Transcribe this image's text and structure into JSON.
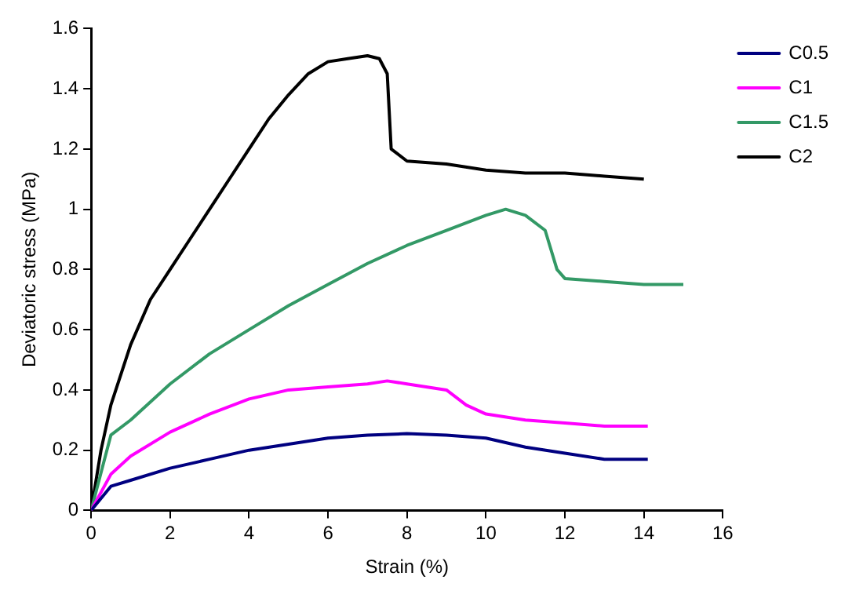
{
  "chart_data": {
    "type": "line",
    "xlabel": "Strain (%)",
    "ylabel": "Deviatoric stress (MPa)",
    "xlim": [
      0,
      16
    ],
    "xticks": [
      0,
      2,
      4,
      6,
      8,
      10,
      12,
      14,
      16
    ],
    "ylim": [
      0,
      1.6
    ],
    "yticks": [
      0,
      0.2,
      0.4,
      0.6,
      0.8,
      1,
      1.2,
      1.4,
      1.6
    ],
    "grid": false,
    "legend": "top right",
    "marker": "none",
    "line_style": "solid",
    "series": [
      {
        "name": "C0.5",
        "color": "#000080",
        "x": [
          0,
          0.5,
          1,
          2,
          3,
          4,
          5,
          6,
          7,
          8,
          9,
          10,
          11,
          12,
          13,
          14.1
        ],
        "values": [
          0,
          0.08,
          0.1,
          0.14,
          0.17,
          0.2,
          0.22,
          0.24,
          0.25,
          0.255,
          0.25,
          0.24,
          0.21,
          0.19,
          0.17,
          0.17
        ]
      },
      {
        "name": "C1",
        "color": "#ff00ff",
        "x": [
          0,
          0.5,
          1,
          2,
          3,
          4,
          5,
          6,
          7,
          7.5,
          8,
          9,
          9.5,
          10,
          11,
          12,
          13,
          14.1
        ],
        "values": [
          0,
          0.12,
          0.18,
          0.26,
          0.32,
          0.37,
          0.4,
          0.41,
          0.42,
          0.43,
          0.42,
          0.4,
          0.35,
          0.32,
          0.3,
          0.29,
          0.28,
          0.28
        ]
      },
      {
        "name": "C1.5",
        "color": "#339966",
        "x": [
          0,
          0.3,
          0.5,
          1,
          2,
          3,
          4,
          5,
          6,
          7,
          8,
          9,
          10,
          10.5,
          11,
          11.5,
          11.8,
          12,
          13,
          14,
          15
        ],
        "values": [
          0,
          0.15,
          0.25,
          0.3,
          0.42,
          0.52,
          0.6,
          0.68,
          0.75,
          0.82,
          0.88,
          0.93,
          0.98,
          1,
          0.98,
          0.93,
          0.8,
          0.77,
          0.76,
          0.75,
          0.75
        ]
      },
      {
        "name": "C2",
        "color": "#000000",
        "x": [
          0,
          0.25,
          0.5,
          1,
          1.5,
          2,
          2.5,
          3,
          3.5,
          4,
          4.5,
          5,
          5.5,
          6,
          6.5,
          7,
          7.3,
          7.5,
          7.6,
          8,
          9,
          10,
          11,
          12,
          13,
          14
        ],
        "values": [
          0,
          0.2,
          0.35,
          0.55,
          0.7,
          0.8,
          0.9,
          1,
          1.1,
          1.2,
          1.3,
          1.38,
          1.45,
          1.49,
          1.5,
          1.51,
          1.5,
          1.45,
          1.2,
          1.16,
          1.15,
          1.13,
          1.12,
          1.12,
          1.11,
          1.1
        ]
      }
    ]
  }
}
